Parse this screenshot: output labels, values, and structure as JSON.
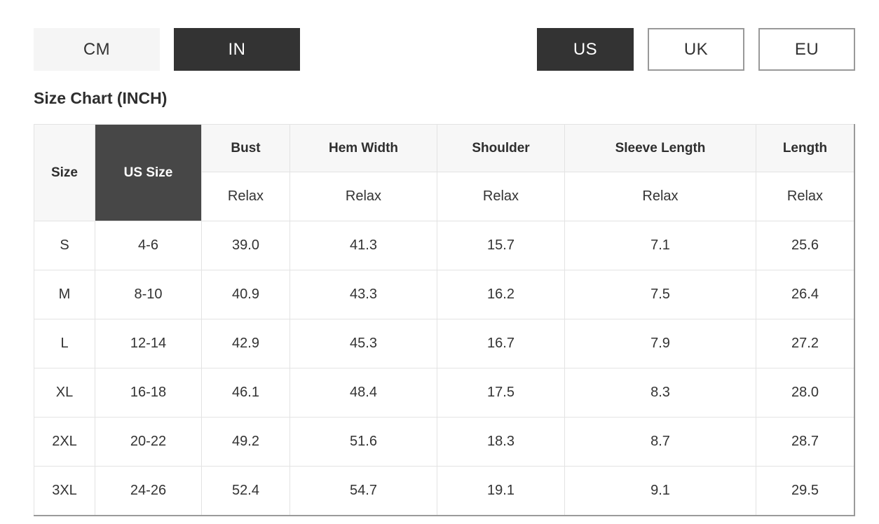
{
  "unit_toggle": {
    "options": [
      {
        "label": "CM",
        "selected": false
      },
      {
        "label": "IN",
        "selected": true
      }
    ]
  },
  "region_toggle": {
    "options": [
      {
        "label": "US",
        "selected": true
      },
      {
        "label": "UK",
        "selected": false
      },
      {
        "label": "EU",
        "selected": false
      }
    ]
  },
  "title": "Size Chart (INCH)",
  "colors": {
    "selected_bg": "#333333",
    "selected_text": "#ffffff",
    "unit_inactive_bg": "#f5f5f5",
    "outline_border": "#999999",
    "header_cell_bg": "#f7f7f7",
    "us_size_cell_bg": "#474747",
    "inner_border": "#e3e3e3",
    "outer_border": "#9a9a9a"
  },
  "size_table": {
    "header": {
      "size": "Size",
      "us_size": "US Size",
      "measures": [
        "Bust",
        "Hem Width",
        "Shoulder",
        "Sleeve Length",
        "Length"
      ],
      "fit": "Relax"
    },
    "rows": [
      {
        "size": "S",
        "us_size": "4-6",
        "values": [
          "39.0",
          "41.3",
          "15.7",
          "7.1",
          "25.6"
        ]
      },
      {
        "size": "M",
        "us_size": "8-10",
        "values": [
          "40.9",
          "43.3",
          "16.2",
          "7.5",
          "26.4"
        ]
      },
      {
        "size": "L",
        "us_size": "12-14",
        "values": [
          "42.9",
          "45.3",
          "16.7",
          "7.9",
          "27.2"
        ]
      },
      {
        "size": "XL",
        "us_size": "16-18",
        "values": [
          "46.1",
          "48.4",
          "17.5",
          "8.3",
          "28.0"
        ]
      },
      {
        "size": "2XL",
        "us_size": "20-22",
        "values": [
          "49.2",
          "51.6",
          "18.3",
          "8.7",
          "28.7"
        ]
      },
      {
        "size": "3XL",
        "us_size": "24-26",
        "values": [
          "52.4",
          "54.7",
          "19.1",
          "9.1",
          "29.5"
        ]
      }
    ]
  }
}
